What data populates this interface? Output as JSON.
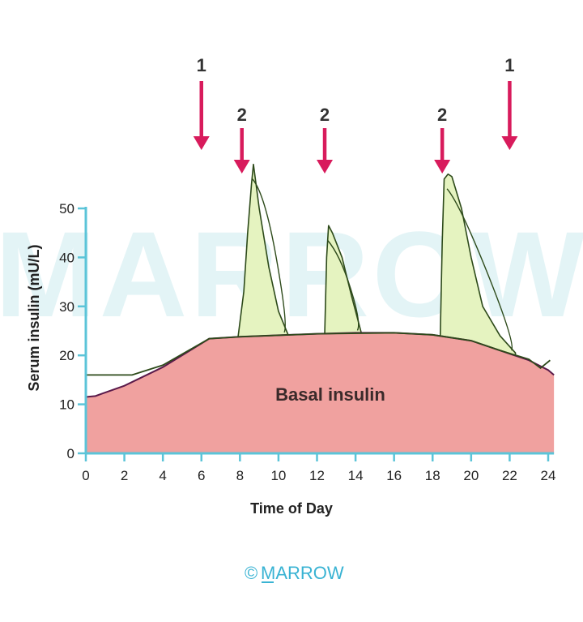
{
  "chart_data": {
    "type": "area",
    "xlabel": "Time of Day",
    "ylabel": "Serum insulin (mU/L)",
    "xlim": [
      0,
      24.3
    ],
    "ylim": [
      0,
      50
    ],
    "xticks": [
      0,
      2,
      4,
      6,
      8,
      10,
      12,
      14,
      16,
      18,
      20,
      22,
      24
    ],
    "yticks": [
      0,
      10,
      20,
      30,
      40,
      50
    ],
    "grid": false,
    "basal": {
      "label": "Basal insulin",
      "color": "#f0a19f",
      "points": [
        [
          0,
          11.5
        ],
        [
          0.5,
          11.7
        ],
        [
          2,
          13.8
        ],
        [
          4,
          17.6
        ],
        [
          6.4,
          23.4
        ],
        [
          8,
          23.8
        ],
        [
          10,
          24.1
        ],
        [
          12,
          24.4
        ],
        [
          14,
          24.6
        ],
        [
          16,
          24.6
        ],
        [
          18,
          24.2
        ],
        [
          20,
          23
        ],
        [
          21.5,
          21
        ],
        [
          23,
          19
        ],
        [
          24,
          17
        ],
        [
          24.3,
          16
        ]
      ]
    },
    "meal_peaks": [
      {
        "points": [
          [
            7.9,
            23.7
          ],
          [
            8.2,
            33
          ],
          [
            8.4,
            45
          ],
          [
            8.6,
            55
          ],
          [
            8.7,
            59
          ],
          [
            9,
            50
          ],
          [
            9.5,
            38
          ],
          [
            10,
            29
          ],
          [
            10.5,
            24.2
          ]
        ]
      },
      {
        "points": [
          [
            12.4,
            24.4
          ],
          [
            12.5,
            40
          ],
          [
            12.6,
            46.5
          ],
          [
            12.8,
            45
          ],
          [
            13.3,
            40
          ],
          [
            13.8,
            32
          ],
          [
            14.3,
            24.6
          ]
        ]
      },
      {
        "points": [
          [
            18.4,
            24.2
          ],
          [
            18.5,
            43
          ],
          [
            18.6,
            56
          ],
          [
            18.8,
            57
          ],
          [
            19,
            56.5
          ],
          [
            19.5,
            50
          ],
          [
            20,
            40
          ],
          [
            20.6,
            30
          ],
          [
            21.5,
            24
          ],
          [
            22.3,
            20.5
          ]
        ]
      }
    ],
    "peak_color": "#e5f3c0",
    "long_acting_line": {
      "points": [
        [
          0,
          16
        ],
        [
          2.4,
          16
        ],
        [
          4,
          18
        ],
        [
          6.4,
          23.4
        ],
        [
          8,
          23.8
        ],
        [
          12,
          24.4
        ],
        [
          16,
          24.6
        ],
        [
          18,
          24.2
        ],
        [
          20,
          23
        ],
        [
          21.5,
          21
        ],
        [
          23,
          19.2
        ],
        [
          23.6,
          17.4
        ],
        [
          24.1,
          19
        ]
      ]
    },
    "arrows": [
      {
        "label": "1",
        "x": 6.0,
        "row": "top"
      },
      {
        "label": "2",
        "x": 8.1,
        "row": "lower"
      },
      {
        "label": "2",
        "x": 12.4,
        "row": "lower"
      },
      {
        "label": "2",
        "x": 18.5,
        "row": "lower"
      },
      {
        "label": "1",
        "x": 22.0,
        "row": "top"
      }
    ],
    "arrow_color": "#d81b5c",
    "axis_color": "#5bc4d8"
  },
  "watermark": "MARROW",
  "credit": {
    "symbol": "©",
    "brand": "MARROW"
  }
}
